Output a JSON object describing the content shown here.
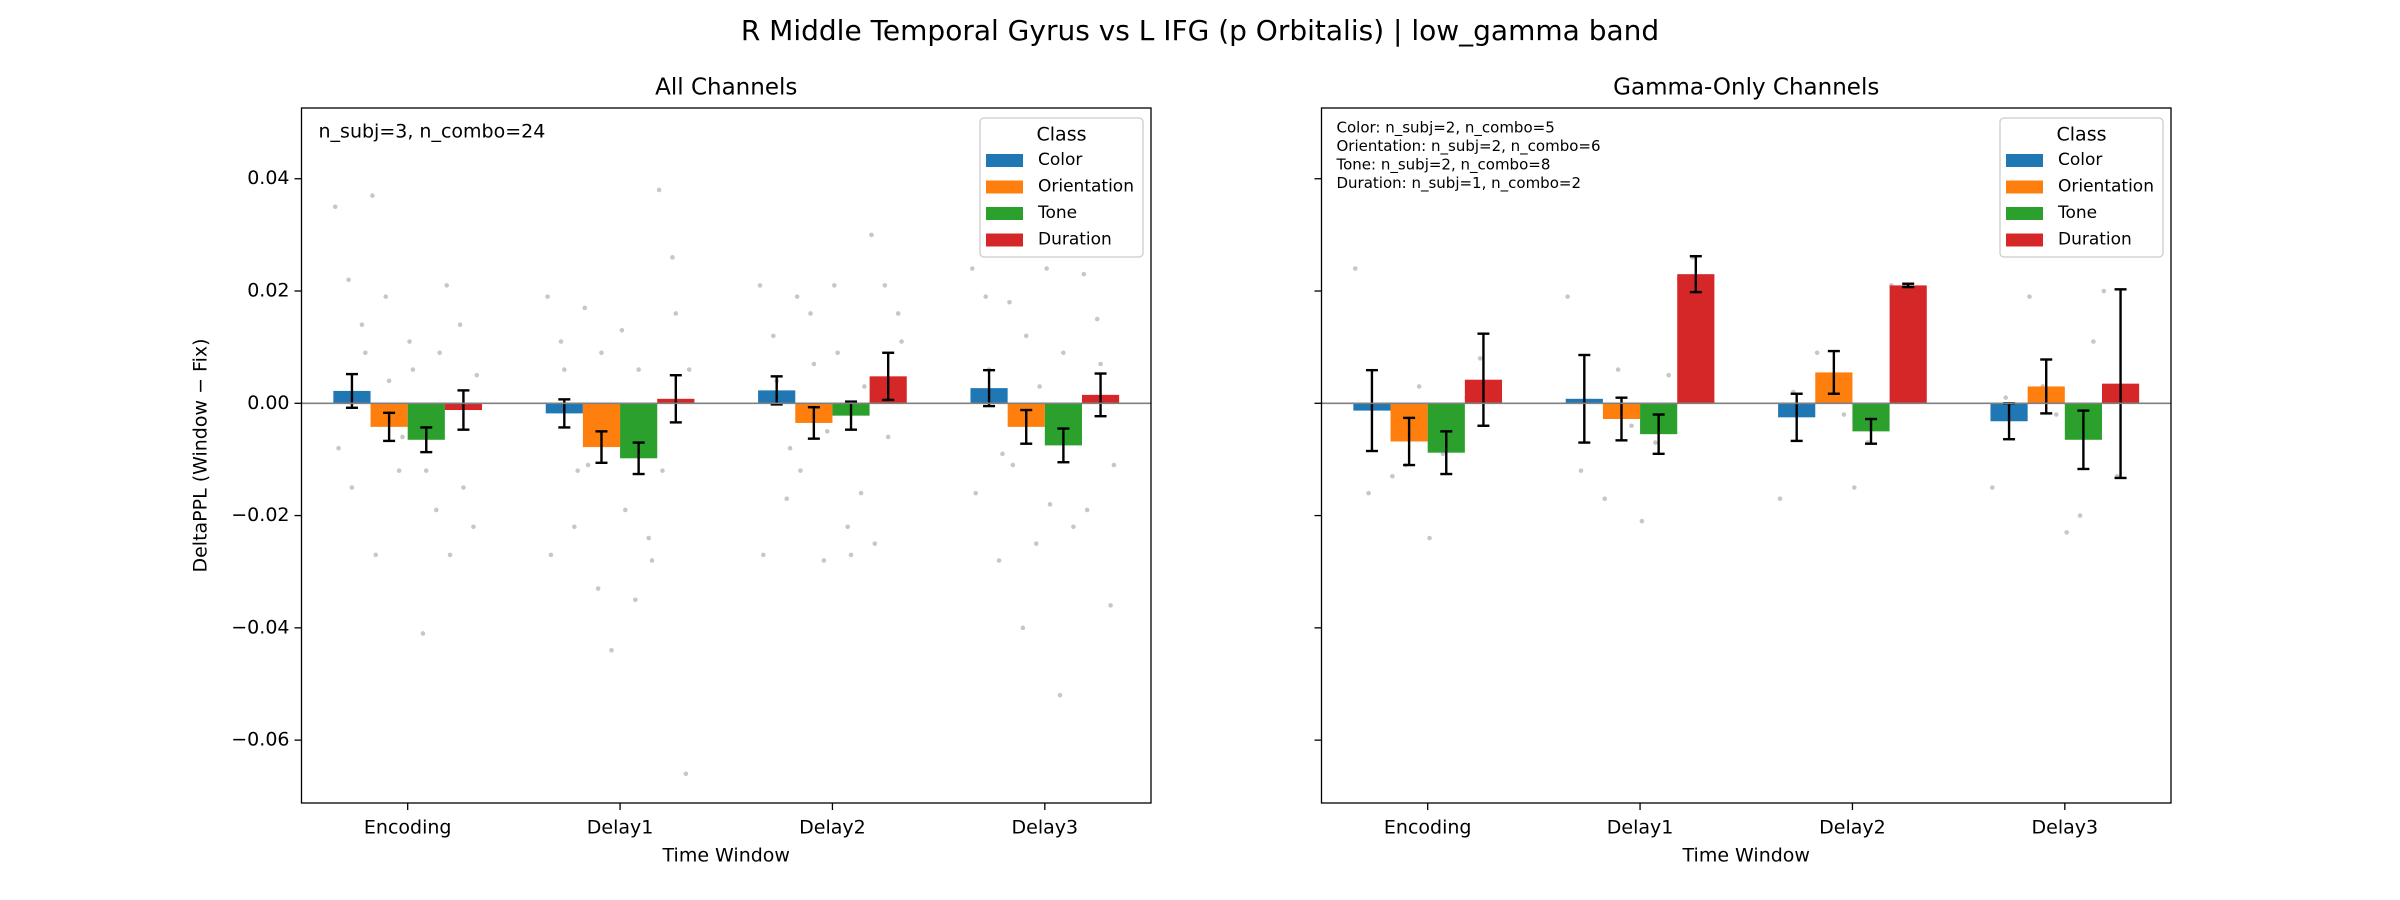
{
  "figure_title": "R Middle Temporal Gyrus vs L IFG (p Orbitalis)  |  low_gamma band",
  "chart_data": [
    {
      "type": "bar",
      "title": "All Channels",
      "xlabel": "Time Window",
      "ylabel": "DeltaPPL (Window − Fix)",
      "categories": [
        "Encoding",
        "Delay1",
        "Delay2",
        "Delay3"
      ],
      "ylim": [
        -0.0712,
        0.0526
      ],
      "yticks": [
        0.04,
        0.02,
        {
          "value": 0,
          "label": "0.00"
        },
        {
          "value": -0.02,
          "label": "−0.02"
        },
        {
          "value": -0.04,
          "label": "−0.04"
        },
        {
          "value": -0.06,
          "label": "−0.06"
        }
      ],
      "show_ytick_labels": true,
      "zero_line": true,
      "legend": {
        "title": "Class",
        "loc": "upper right"
      },
      "annotations": [
        "n_subj=3, n_combo=24"
      ],
      "series": [
        {
          "name": "Color",
          "color": "#1f77b4",
          "values": [
            0.0022,
            -0.0018,
            0.0023,
            0.0027
          ],
          "errors": [
            0.003,
            0.0025,
            0.0025,
            0.0032
          ],
          "points": [
            [
              0.035,
              0.022,
              0.014,
              -0.008,
              -0.015,
              0.009
            ],
            [
              0.019,
              0.011,
              -0.022,
              -0.027,
              0.006,
              -0.012
            ],
            [
              0.021,
              0.012,
              -0.017,
              -0.027,
              0.004,
              -0.008
            ],
            [
              0.024,
              0.019,
              -0.028,
              -0.016,
              0.006,
              -0.009
            ]
          ]
        },
        {
          "name": "Orientation",
          "color": "#ff7f0e",
          "values": [
            -0.0042,
            -0.0078,
            -0.0035,
            -0.0042
          ],
          "errors": [
            0.0025,
            0.0028,
            0.0028,
            0.003
          ],
          "points": [
            [
              0.037,
              0.019,
              -0.012,
              -0.027,
              0.004,
              -0.006
            ],
            [
              0.017,
              -0.033,
              -0.044,
              -0.011,
              0.009,
              -0.004
            ],
            [
              0.019,
              0.016,
              -0.028,
              -0.012,
              0.007,
              -0.005
            ],
            [
              0.018,
              -0.04,
              -0.025,
              -0.011,
              0.012,
              0.003
            ]
          ]
        },
        {
          "name": "Tone",
          "color": "#2ca02c",
          "values": [
            -0.0065,
            -0.0098,
            -0.0022,
            -0.0075
          ],
          "errors": [
            0.0022,
            0.0028,
            0.0025,
            0.003
          ],
          "points": [
            [
              0.011,
              -0.041,
              -0.019,
              0.006,
              -0.012,
              0.009
            ],
            [
              0.013,
              -0.035,
              -0.024,
              -0.019,
              0.006,
              -0.028
            ],
            [
              0.021,
              -0.022,
              -0.016,
              0.009,
              -0.027,
              0.003
            ],
            [
              0.024,
              -0.052,
              -0.022,
              -0.018,
              0.009,
              -0.005
            ]
          ]
        },
        {
          "name": "Duration",
          "color": "#d62728",
          "values": [
            -0.0012,
            0.0008,
            0.0048,
            0.0015
          ],
          "errors": [
            0.0035,
            0.0042,
            0.0042,
            0.0038
          ],
          "points": [
            [
              0.021,
              0.014,
              -0.022,
              -0.027,
              -0.015,
              0.005
            ],
            [
              0.038,
              0.026,
              -0.066,
              -0.012,
              0.016,
              0.006
            ],
            [
              0.03,
              0.021,
              0.016,
              -0.025,
              -0.006,
              0.011
            ],
            [
              0.023,
              0.015,
              -0.036,
              -0.019,
              0.007,
              -0.011
            ]
          ]
        }
      ]
    },
    {
      "type": "bar",
      "title": "Gamma-Only Channels",
      "xlabel": "Time Window",
      "categories": [
        "Encoding",
        "Delay1",
        "Delay2",
        "Delay3"
      ],
      "ylim": [
        -0.0712,
        0.0526
      ],
      "yticks": [
        0.04,
        0.02,
        0,
        -0.02,
        -0.04,
        -0.06
      ],
      "show_ytick_labels": false,
      "zero_line": true,
      "legend": {
        "title": "Class",
        "loc": "upper right"
      },
      "annotations": [
        "Color: n_subj=2, n_combo=5",
        "Orientation: n_subj=2, n_combo=6",
        "Tone: n_subj=2, n_combo=8",
        "Duration: n_subj=1, n_combo=2"
      ],
      "series": [
        {
          "name": "Color",
          "color": "#1f77b4",
          "values": [
            -0.0013,
            0.0008,
            -0.0025,
            -0.0032
          ],
          "errors": [
            0.0072,
            0.0078,
            0.0042,
            0.0032
          ],
          "points": [
            [
              0.024,
              -0.016
            ],
            [
              0.019,
              -0.012
            ],
            [
              -0.017,
              0.002
            ],
            [
              -0.015,
              0.001
            ]
          ]
        },
        {
          "name": "Orientation",
          "color": "#ff7f0e",
          "values": [
            -0.0068,
            -0.0028,
            0.0055,
            0.003
          ],
          "errors": [
            0.0042,
            0.0038,
            0.0038,
            0.0048
          ],
          "points": [
            [
              -0.013,
              -0.011,
              0.003
            ],
            [
              -0.017,
              0.006,
              -0.004
            ],
            [
              0.009,
              0.005,
              -0.002
            ],
            [
              0.019,
              0.003,
              -0.002
            ]
          ]
        },
        {
          "name": "Tone",
          "color": "#2ca02c",
          "values": [
            -0.0088,
            -0.0055,
            -0.005,
            -0.0065
          ],
          "errors": [
            0.0038,
            0.0035,
            0.0022,
            0.0052
          ],
          "points": [
            [
              -0.024,
              -0.009,
              -0.004
            ],
            [
              -0.021,
              -0.007,
              0.005
            ],
            [
              -0.015,
              -0.007,
              -0.002
            ],
            [
              -0.023,
              -0.02,
              0.011
            ]
          ]
        },
        {
          "name": "Duration",
          "color": "#d62728",
          "values": [
            0.0042,
            0.023,
            0.021,
            0.0035
          ],
          "errors": [
            0.0082,
            0.0032,
            0.0003,
            0.0168
          ],
          "points": [
            [
              0.001,
              0.008
            ],
            [
              0.022,
              0.026
            ],
            [
              0.021,
              0.021
            ],
            [
              0.02,
              -0.013
            ]
          ]
        }
      ]
    }
  ]
}
